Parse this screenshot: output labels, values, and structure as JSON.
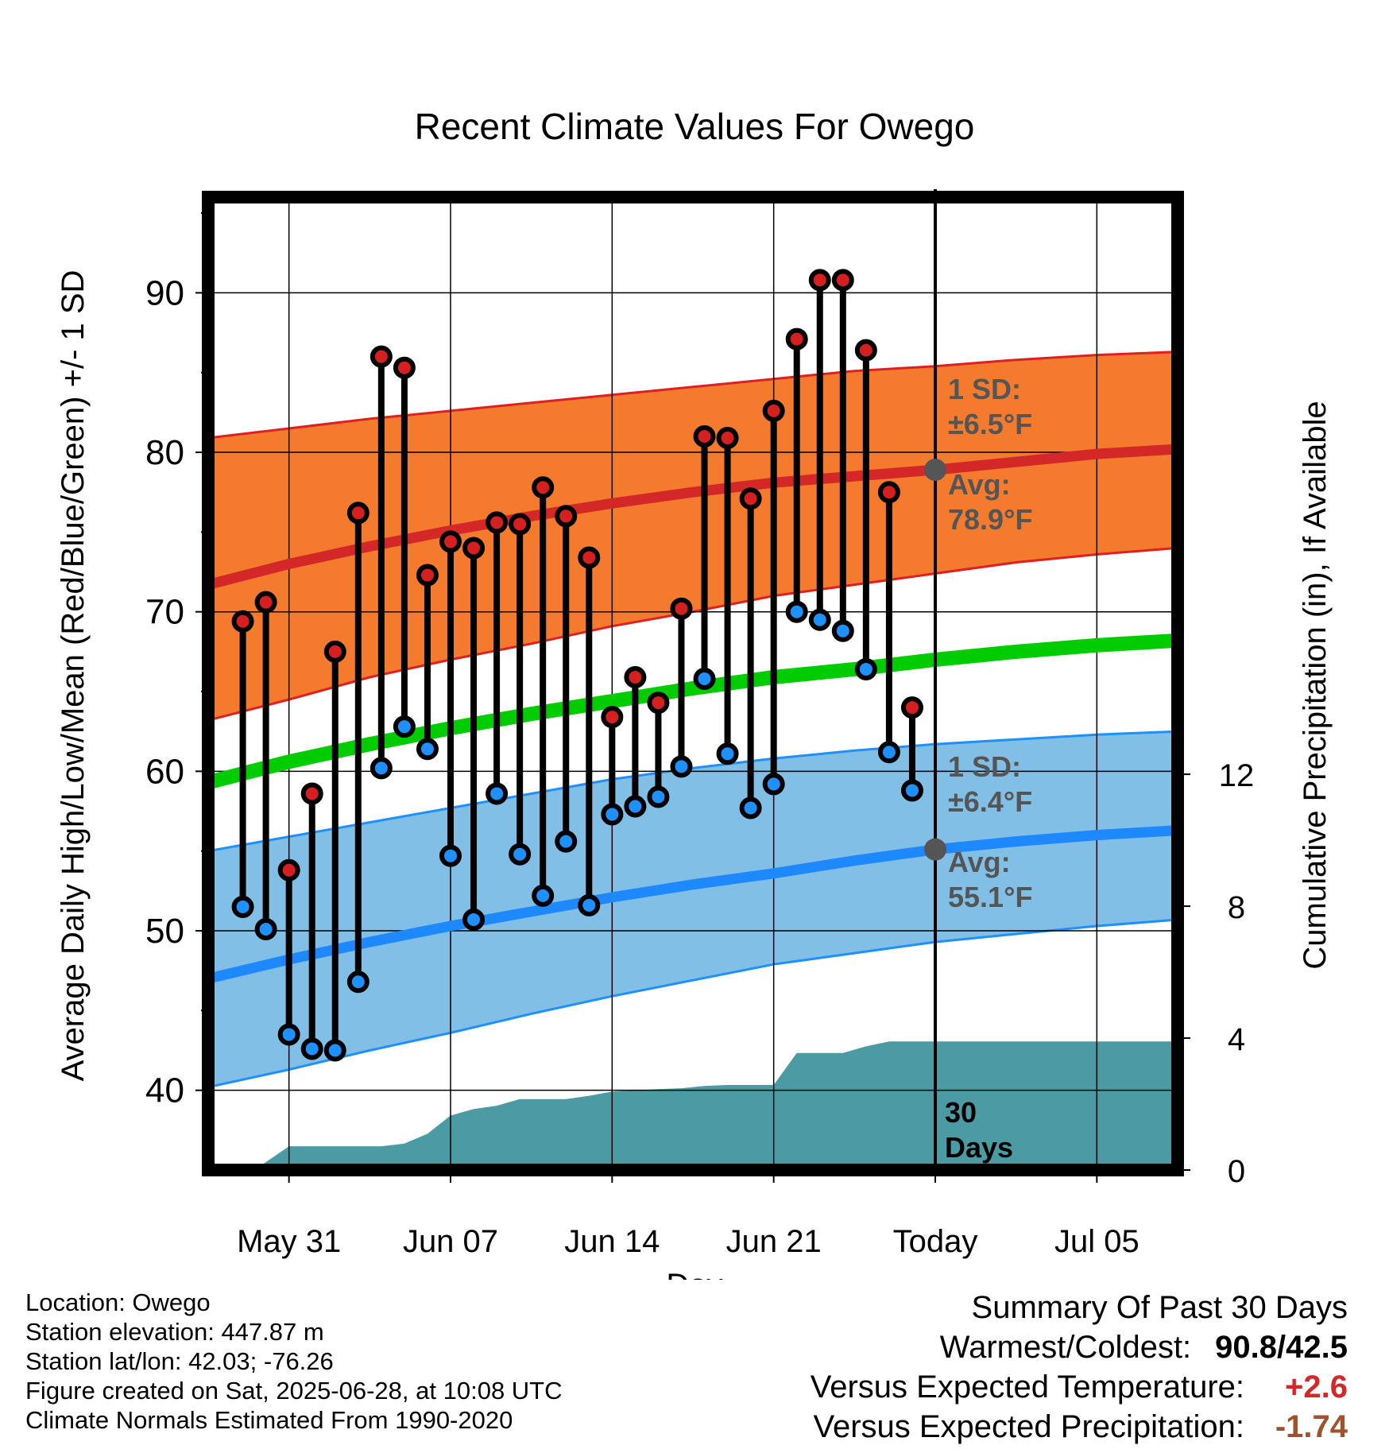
{
  "chart_data": {
    "type": "line",
    "title": "Recent Climate Values For Owego",
    "xlabel": "Day",
    "ylabel": "Average Daily High/Low/Mean (Red/Blue/Green) +/- 1 SD",
    "y2label": "Cumulative Precipitation (in), If Available",
    "ylim": [
      35,
      96
    ],
    "y2lim": [
      0,
      29.5
    ],
    "y_ticks": [
      40,
      50,
      60,
      70,
      80,
      90
    ],
    "y2_ticks": [
      0,
      4,
      8,
      12
    ],
    "x_range_days": [
      -31.5,
      10.5
    ],
    "x_ticks": [
      {
        "day": -28,
        "label": "May 31"
      },
      {
        "day": -21,
        "label": "Jun 07"
      },
      {
        "day": -14,
        "label": "Jun 14"
      },
      {
        "day": -7,
        "label": "Jun 21"
      },
      {
        "day": 0,
        "label": "Today"
      },
      {
        "day": 7,
        "label": "Jul 05"
      }
    ],
    "grid": true,
    "today_marker_label_lines": [
      "30",
      "Days"
    ],
    "observed": {
      "days": [
        -30,
        -29,
        -28,
        -27,
        -26,
        -25,
        -24,
        -23,
        -22,
        -21,
        -20,
        -19,
        -18,
        -17,
        -16,
        -15,
        -14,
        -13,
        -12,
        -11,
        -10,
        -9,
        -8,
        -7,
        -6,
        -5,
        -4,
        -3,
        -2,
        -1
      ],
      "highs": [
        69.4,
        70.6,
        53.8,
        58.6,
        67.5,
        76.2,
        86.0,
        85.3,
        72.3,
        74.4,
        74.0,
        75.6,
        75.5,
        77.8,
        76.0,
        73.4,
        63.4,
        65.9,
        64.3,
        70.2,
        81.0,
        80.9,
        77.1,
        82.6,
        87.1,
        90.8,
        90.8,
        86.4,
        77.5,
        64.0
      ],
      "lows": [
        51.5,
        50.1,
        43.5,
        42.6,
        42.5,
        46.8,
        60.2,
        62.8,
        61.4,
        54.7,
        50.7,
        58.6,
        54.8,
        52.2,
        55.6,
        51.6,
        57.3,
        57.8,
        58.4,
        60.3,
        65.8,
        61.1,
        57.7,
        59.2,
        70.0,
        69.5,
        68.8,
        66.4,
        61.2,
        58.8
      ]
    },
    "normals": {
      "days": [
        -31.5,
        -28,
        -24.5,
        -21,
        -17.5,
        -14,
        -10.5,
        -7,
        -3.5,
        0,
        3.5,
        7,
        10.5
      ],
      "high_mean": [
        71.7,
        73.0,
        74.1,
        75.1,
        76.0,
        76.8,
        77.5,
        78.1,
        78.5,
        78.9,
        79.4,
        79.9,
        80.2
      ],
      "low_mean": [
        47.0,
        48.2,
        49.3,
        50.3,
        51.2,
        52.1,
        52.9,
        53.6,
        54.4,
        55.1,
        55.6,
        56.0,
        56.3
      ],
      "daily_mean": [
        59.3,
        60.6,
        61.7,
        62.7,
        63.6,
        64.4,
        65.2,
        65.9,
        66.4,
        67.0,
        67.5,
        67.9,
        68.2
      ],
      "high_sd_upper": [
        80.9,
        81.5,
        82.1,
        82.6,
        83.1,
        83.6,
        84.1,
        84.6,
        85.1,
        85.4,
        85.8,
        86.1,
        86.3
      ],
      "high_sd_lower": [
        63.2,
        64.5,
        65.9,
        67.0,
        68.0,
        69.1,
        70.0,
        71.0,
        71.7,
        72.4,
        73.1,
        73.6,
        74.0
      ],
      "low_sd_upper": [
        55.0,
        55.9,
        56.8,
        57.7,
        58.6,
        59.5,
        60.2,
        60.8,
        61.3,
        61.7,
        62.0,
        62.3,
        62.5
      ],
      "low_sd_lower": [
        40.2,
        41.3,
        42.5,
        43.6,
        44.8,
        45.9,
        46.9,
        47.9,
        48.6,
        49.3,
        49.8,
        50.3,
        50.7
      ]
    },
    "precipitation": {
      "days": [
        -31.5,
        -29.5,
        -28,
        -24,
        -23,
        -22,
        -21,
        -20,
        -19,
        -18,
        -17,
        -16,
        -15,
        -14,
        -13,
        -12,
        -11,
        -10,
        -9,
        -8,
        -7,
        -6,
        -5,
        -4,
        -3,
        -2,
        -1,
        0,
        10.5
      ],
      "cumulative": [
        0,
        0,
        0.72,
        0.72,
        0.8,
        1.1,
        1.65,
        1.85,
        1.95,
        2.15,
        2.15,
        2.15,
        2.25,
        2.38,
        2.42,
        2.45,
        2.48,
        2.55,
        2.58,
        2.58,
        2.58,
        3.55,
        3.55,
        3.55,
        3.75,
        3.9,
        3.9,
        3.9,
        3.9
      ]
    },
    "annotations": {
      "high_sd": {
        "line1": "1 SD:",
        "line2": "±6.5°F"
      },
      "high_avg": {
        "line1": "Avg:",
        "line2": "78.9°F"
      },
      "low_sd": {
        "line1": "1 SD:",
        "line2": "±6.4°F"
      },
      "low_avg": {
        "line1": "Avg:",
        "line2": "55.1°F"
      }
    }
  },
  "colors": {
    "high_band": "#F47B2E",
    "high_edge": "#E02020",
    "high_mean": "#D42828",
    "low_band": "#82BFE6",
    "low_edge": "#1E90FF",
    "low_mean": "#1E88FF",
    "mean_line": "#00CC00",
    "precip": "#4A9BA3",
    "high_dot": "#D42020",
    "low_dot": "#1E90FF",
    "annotation_text": "#555555",
    "positive_anomaly": "#D42828",
    "negative_anomaly": "#A0522D"
  },
  "footer": {
    "location": "Location: Owego",
    "elevation": "Station elevation: 447.87 m",
    "latlon": "Station lat/lon: 42.03; -76.26",
    "created": "Figure created on Sat, 2025-06-28, at 10:08 UTC",
    "normals": "Climate Normals Estimated From 1990-2020"
  },
  "summary": {
    "title": "Summary Of Past 30 Days",
    "warmest_label": "Warmest/Coldest:",
    "warmest_value": "90.8/42.5",
    "temp_label": "Versus Expected Temperature:",
    "temp_value": "+2.6",
    "precip_label": "Versus Expected Precipitation:",
    "precip_value": "-1.74"
  }
}
